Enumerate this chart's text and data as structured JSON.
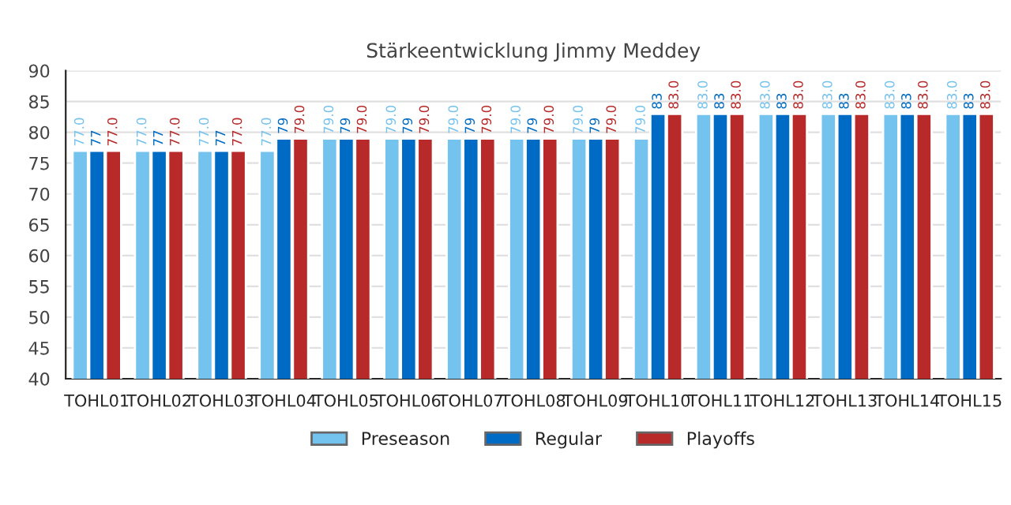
{
  "chart_data": {
    "type": "bar",
    "title": "Stärkeentwicklung Jimmy Meddey",
    "categories": [
      "TOHL01",
      "TOHL02",
      "TOHL03",
      "TOHL04",
      "TOHL05",
      "TOHL06",
      "TOHL07",
      "TOHL08",
      "TOHL09",
      "TOHL10",
      "TOHL11",
      "TOHL12",
      "TOHL13",
      "TOHL14",
      "TOHL15"
    ],
    "series": [
      {
        "name": "Preseason",
        "color": "#74c2ee",
        "values": [
          77,
          77,
          77,
          77,
          79,
          79,
          79,
          79,
          79,
          79,
          83,
          83,
          83,
          83,
          83
        ],
        "value_labels": [
          "77.0",
          "77.0",
          "77.0",
          "77.0",
          "79.0",
          "79.0",
          "79.0",
          "79.0",
          "79.0",
          "79.0",
          "83.0",
          "83.0",
          "83.0",
          "83.0",
          "83.0"
        ]
      },
      {
        "name": "Regular",
        "color": "#006bc4",
        "values": [
          77,
          77,
          77,
          79,
          79,
          79,
          79,
          79,
          79,
          83,
          83,
          83,
          83,
          83,
          83
        ],
        "value_labels": [
          "77",
          "77",
          "77",
          "79",
          "79",
          "79",
          "79",
          "79",
          "79",
          "83",
          "83",
          "83",
          "83",
          "83",
          "83"
        ]
      },
      {
        "name": "Playoffs",
        "color": "#b82a2a",
        "values": [
          77,
          77,
          77,
          79,
          79,
          79,
          79,
          79,
          79,
          83,
          83,
          83,
          83,
          83,
          83
        ],
        "value_labels": [
          "77.0",
          "77.0",
          "77.0",
          "79.0",
          "79.0",
          "79.0",
          "79.0",
          "79.0",
          "79.0",
          "83.0",
          "83.0",
          "83.0",
          "83.0",
          "83.0",
          "83.0"
        ]
      }
    ],
    "ylim": [
      40,
      90
    ],
    "yticks": [
      40,
      45,
      50,
      55,
      60,
      65,
      70,
      75,
      80,
      85,
      90
    ],
    "grid": "y",
    "legend": "bottom"
  }
}
